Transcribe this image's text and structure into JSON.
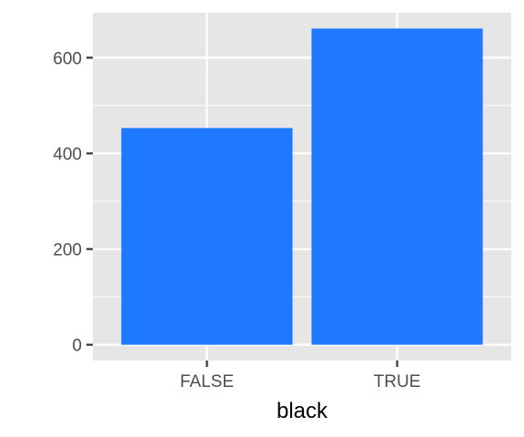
{
  "chart_data": {
    "type": "bar",
    "categories": [
      "FALSE",
      "TRUE"
    ],
    "values": [
      453,
      661
    ],
    "xlabel": "black",
    "ylabel": "",
    "ylim": [
      -33,
      694
    ],
    "y_ticks": [
      0,
      200,
      400,
      600
    ],
    "y_tick_labels": [
      "0",
      "200",
      "400",
      "600"
    ],
    "grid": true,
    "colors": {
      "bar": "#1e79ff",
      "panel": "#e6e6e6",
      "grid": "#ffffff",
      "tick": "#333333"
    }
  }
}
